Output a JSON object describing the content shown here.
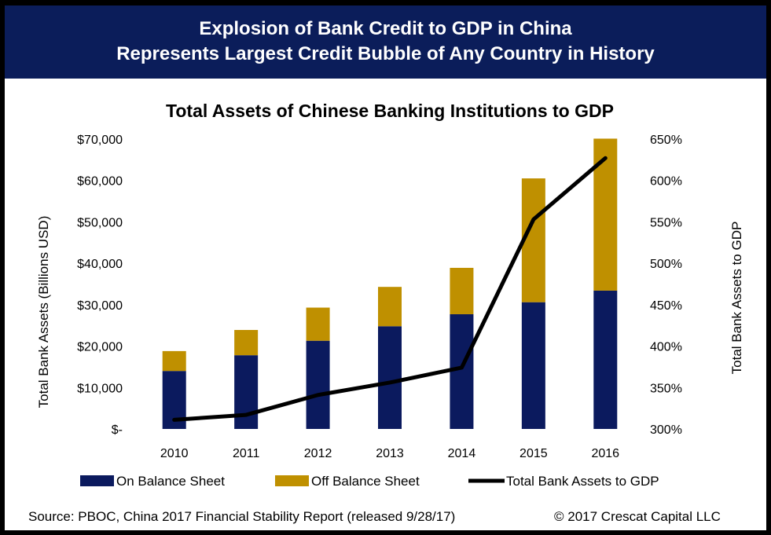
{
  "banner": {
    "line1": "Explosion of Bank Credit to GDP in China",
    "line2": "Represents Largest Credit Bubble of Any Country in History"
  },
  "footer": {
    "source": "Source: PBOC, China 2017 Financial Stability Report (released  9/28/17)",
    "copyright": "© 2017 Crescat Capital LLC"
  },
  "colors": {
    "banner_bg": "#0b1d5a",
    "on_balance": "#0b1a5e",
    "off_balance": "#bf9000",
    "line": "#000000"
  },
  "chart_data": {
    "type": "bar",
    "stacked": true,
    "title": "Total Assets of Chinese Banking Institutions to GDP",
    "xlabel": "",
    "ylabel": "Total Bank Assets (Billions USD)",
    "y2label": "Total Bank Assets to GDP",
    "categories": [
      "2010",
      "2011",
      "2012",
      "2013",
      "2014",
      "2015",
      "2016"
    ],
    "ylim": [
      0,
      70000
    ],
    "y2lim": [
      300,
      650
    ],
    "y_ticks": [
      "$-",
      "$10,000",
      "$20,000",
      "$30,000",
      "$40,000",
      "$50,000",
      "$60,000",
      "$70,000"
    ],
    "y2_ticks": [
      "300%",
      "350%",
      "400%",
      "450%",
      "500%",
      "550%",
      "600%",
      "650%"
    ],
    "series": [
      {
        "name": "On Balance Sheet",
        "type": "bar",
        "values": [
          14000,
          17800,
          21300,
          24800,
          27700,
          30600,
          33400
        ]
      },
      {
        "name": "Off Balance Sheet",
        "type": "bar",
        "values": [
          4800,
          6100,
          8000,
          9500,
          11200,
          29900,
          36700
        ]
      },
      {
        "name": "Total Bank Assets to GDP",
        "type": "line",
        "axis": "right",
        "values": [
          311,
          317,
          341,
          356,
          374,
          553,
          627
        ]
      }
    ],
    "legend_position": "bottom",
    "grid": false
  }
}
